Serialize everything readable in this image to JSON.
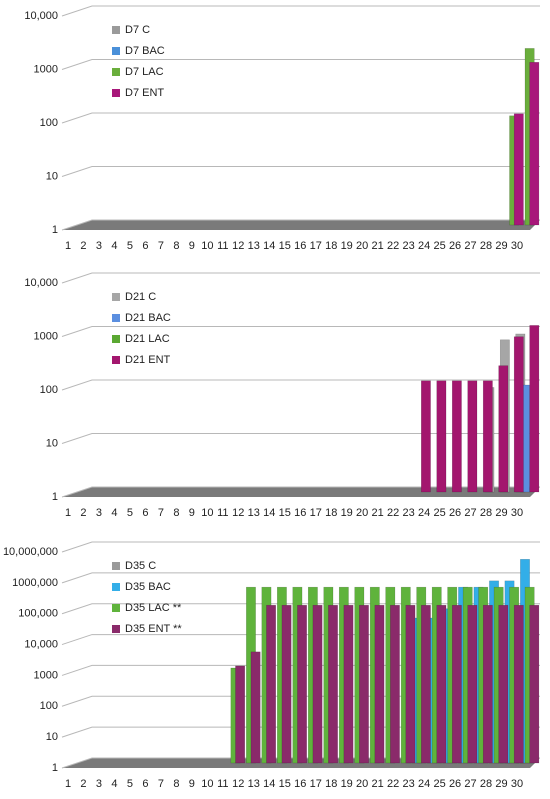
{
  "chart_data": [
    {
      "type": "bar",
      "log": true,
      "grid": true,
      "legend": "upper left",
      "categories": [
        1,
        2,
        3,
        4,
        5,
        6,
        7,
        8,
        9,
        10,
        11,
        12,
        13,
        14,
        15,
        16,
        17,
        18,
        19,
        20,
        21,
        22,
        23,
        24,
        25,
        26,
        27,
        28,
        29,
        30
      ],
      "ylim": [
        1,
        10000
      ],
      "yticks": [
        1,
        10,
        100,
        1000,
        {
          "value": 10000,
          "label": "10,000"
        }
      ],
      "series": [
        {
          "name": "D7 C",
          "color": "#9a9a9a",
          "values": [
            null,
            null,
            null,
            null,
            null,
            null,
            null,
            null,
            null,
            null,
            null,
            null,
            null,
            null,
            null,
            null,
            null,
            null,
            null,
            null,
            null,
            null,
            null,
            null,
            null,
            null,
            null,
            null,
            null,
            null
          ]
        },
        {
          "name": "D7 BAC",
          "color": "#4a90d9",
          "values": [
            null,
            null,
            null,
            null,
            null,
            null,
            null,
            null,
            null,
            null,
            null,
            null,
            null,
            null,
            null,
            null,
            null,
            null,
            null,
            null,
            null,
            null,
            null,
            null,
            null,
            null,
            null,
            null,
            null,
            null
          ]
        },
        {
          "name": "D7 LAC",
          "color": "#6aae3c",
          "values": [
            null,
            null,
            null,
            null,
            null,
            null,
            null,
            null,
            null,
            null,
            null,
            null,
            null,
            null,
            null,
            null,
            null,
            null,
            null,
            null,
            null,
            null,
            null,
            null,
            null,
            null,
            null,
            null,
            110,
            2000
          ]
        },
        {
          "name": "D7 ENT",
          "color": "#a8177a",
          "values": [
            null,
            null,
            null,
            null,
            null,
            null,
            null,
            null,
            null,
            null,
            null,
            null,
            null,
            null,
            null,
            null,
            null,
            null,
            null,
            null,
            null,
            null,
            null,
            null,
            null,
            null,
            null,
            null,
            120,
            1100
          ]
        }
      ]
    },
    {
      "type": "bar",
      "log": true,
      "grid": true,
      "legend": "upper left",
      "categories": [
        1,
        2,
        3,
        4,
        5,
        6,
        7,
        8,
        9,
        10,
        11,
        12,
        13,
        14,
        15,
        16,
        17,
        18,
        19,
        20,
        21,
        22,
        23,
        24,
        25,
        26,
        27,
        28,
        29,
        30
      ],
      "ylim": [
        1,
        10000
      ],
      "yticks": [
        1,
        10,
        100,
        1000,
        {
          "value": 10000,
          "label": "10,000"
        }
      ],
      "series": [
        {
          "name": "D21 C",
          "color": "#a6a6a6",
          "values": [
            null,
            null,
            null,
            null,
            null,
            null,
            null,
            null,
            null,
            null,
            null,
            null,
            null,
            null,
            null,
            null,
            null,
            null,
            null,
            null,
            null,
            null,
            null,
            null,
            null,
            null,
            null,
            90,
            700,
            900
          ]
        },
        {
          "name": "D21 BAC",
          "color": "#5b8fe0",
          "values": [
            null,
            null,
            null,
            null,
            null,
            null,
            null,
            null,
            null,
            null,
            null,
            null,
            null,
            null,
            null,
            null,
            null,
            null,
            null,
            null,
            null,
            null,
            null,
            null,
            null,
            null,
            null,
            null,
            null,
            100
          ]
        },
        {
          "name": "D21 LAC",
          "color": "#5aa832",
          "values": [
            null,
            null,
            null,
            null,
            null,
            null,
            null,
            null,
            null,
            null,
            null,
            null,
            null,
            null,
            null,
            null,
            null,
            null,
            null,
            null,
            null,
            null,
            null,
            null,
            null,
            null,
            null,
            null,
            null,
            null
          ]
        },
        {
          "name": "D21 ENT",
          "color": "#a3166e",
          "values": [
            null,
            null,
            null,
            null,
            null,
            null,
            null,
            null,
            null,
            null,
            null,
            null,
            null,
            null,
            null,
            null,
            null,
            null,
            null,
            null,
            null,
            null,
            120,
            120,
            120,
            120,
            120,
            230,
            800,
            1300
          ]
        }
      ]
    },
    {
      "type": "bar",
      "log": true,
      "grid": true,
      "legend": "upper left",
      "categories": [
        1,
        2,
        3,
        4,
        5,
        6,
        7,
        8,
        9,
        10,
        11,
        12,
        13,
        14,
        15,
        16,
        17,
        18,
        19,
        20,
        21,
        22,
        23,
        24,
        25,
        26,
        27,
        28,
        29,
        30
      ],
      "ylim": [
        1,
        10000000
      ],
      "yticks": [
        1,
        10,
        100,
        1000,
        {
          "value": 10000,
          "label": "10,000"
        },
        {
          "value": 100000,
          "label": "100,000"
        },
        {
          "value": 1000000,
          "label": "1000,000"
        },
        {
          "value": 10000000,
          "label": "10,000,000"
        }
      ],
      "series": [
        {
          "name": "D35 C",
          "color": "#9a9a9a",
          "values": [
            null,
            null,
            null,
            null,
            null,
            null,
            null,
            null,
            null,
            null,
            null,
            null,
            null,
            null,
            null,
            null,
            null,
            null,
            null,
            null,
            null,
            null,
            null,
            null,
            null,
            null,
            null,
            null,
            80,
            400
          ]
        },
        {
          "name": "D35 BAC",
          "color": "#33aee8",
          "values": [
            null,
            null,
            null,
            null,
            null,
            null,
            null,
            null,
            null,
            null,
            null,
            null,
            null,
            null,
            null,
            null,
            null,
            null,
            null,
            null,
            null,
            null,
            50000,
            50000,
            100000,
            500000,
            500000,
            800000,
            800000,
            4000000
          ]
        },
        {
          "name": "D35 LAC **",
          "color": "#5fb33c",
          "values": [
            null,
            null,
            null,
            null,
            null,
            null,
            null,
            null,
            null,
            null,
            1200,
            500000,
            500000,
            500000,
            500000,
            500000,
            500000,
            500000,
            500000,
            500000,
            500000,
            500000,
            500000,
            500000,
            500000,
            500000,
            500000,
            500000,
            500000,
            500000
          ]
        },
        {
          "name": "D35 ENT **",
          "color": "#8a2a6a",
          "values": [
            null,
            null,
            null,
            null,
            null,
            null,
            null,
            null,
            null,
            null,
            1400,
            4000,
            130000,
            130000,
            130000,
            130000,
            130000,
            130000,
            130000,
            130000,
            130000,
            130000,
            130000,
            130000,
            130000,
            130000,
            130000,
            130000,
            130000,
            130000
          ]
        }
      ]
    }
  ]
}
